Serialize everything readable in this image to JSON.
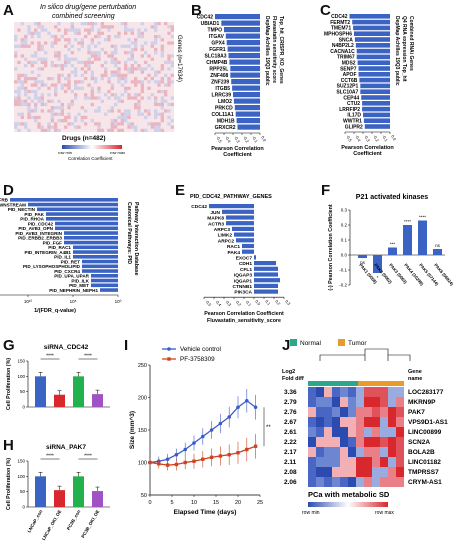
{
  "letters": {
    "A": "A",
    "B": "B",
    "C": "C",
    "D": "D",
    "E": "E",
    "F": "F",
    "G": "G",
    "H": "H",
    "I": "I",
    "J": "J"
  },
  "panelA": {
    "title_l1": "In silico drug/gene perturbation",
    "title_l2": "combined screening",
    "y_label": "Genes (n=17634)",
    "x_label": "Drugs (n=482)",
    "scale_min": "row min",
    "scale_max": "row max",
    "scale_title": "Correlation Coefficient"
  },
  "chart_data": [
    {
      "panel": "B",
      "type": "bar",
      "categories": [
        "CDC42",
        "UBIAD1",
        "TMPO",
        "ITGAV",
        "GPX4",
        "FGFR1",
        "SLC18A3",
        "CHMP4B",
        "RPP25L",
        "ZNF408",
        "ZNF239",
        "ITGB5",
        "LRRC39",
        "LMO2",
        "PRKCD",
        "COL11A1",
        "MDH1B",
        "GRXCR2"
      ],
      "values": [
        -0.5,
        -0.43,
        -0.4,
        -0.38,
        -0.37,
        -0.36,
        -0.35,
        -0.34,
        -0.33,
        -0.33,
        -0.32,
        -0.31,
        -0.3,
        -0.29,
        -0.28,
        -0.27,
        -0.26,
        -0.25
      ],
      "xlabel": "Pearson Correlation Coefficient",
      "ticks": [
        "-0.5",
        "-0.4",
        "-0.3",
        "-0.2",
        "-0.1",
        "0.0"
      ],
      "side_title": [
        "DepMap Achilles 19Q3 public",
        "Fluvastatin sensitivity score",
        "Top_hit_CRISPR_KO_Genes"
      ]
    },
    {
      "panel": "C",
      "type": "bar",
      "categories": [
        "CDC42",
        "FERMT2",
        "TMEM71",
        "MPHOSPH6",
        "SNCA",
        "N4BP2L2",
        "CACNA1C",
        "TRIM67",
        "MDS2",
        "SENP7",
        "APOF",
        "CCT6B",
        "SUZ12P1",
        "SLC10A7",
        "CEP44",
        "CTU2",
        "LRRFIP2",
        "IL17D",
        "WWTR1",
        "GLIPR2"
      ],
      "values": [
        -0.45,
        -0.42,
        -0.41,
        -0.4,
        -0.39,
        -0.38,
        -0.37,
        -0.37,
        -0.36,
        -0.35,
        -0.35,
        -0.34,
        -0.33,
        -0.33,
        -0.32,
        -0.31,
        -0.31,
        -0.3,
        -0.29,
        -0.28
      ],
      "xlabel": "Pearson Correlation Coefficient",
      "ticks": [
        "-0.5",
        "-0.4",
        "-0.3",
        "-0.2",
        "-0.1",
        "0.0"
      ],
      "side_title": [
        "DepMap Achilles 19Q3 public",
        "Q4 RNA expression Top_hit",
        "Combined RNAi Genes"
      ]
    },
    {
      "panel": "D",
      "type": "bar",
      "categories": [
        "PID_PDGFRB",
        "PID_ERBB1_DOWNSTREAM",
        "PID_NECTIN",
        "PID_PAK",
        "PID_RHOA",
        "PID_CDC42",
        "PID_AVB3_OPN",
        "PID_AVB3_INTEGRIN",
        "PID_ERBB2_ERBB3",
        "PID_FGF",
        "PID_RAC1",
        "PID_INTEGRIN_A4B1",
        "PID_IL1",
        "PID_RET",
        "PID_LYSOPHOSPHOLIPID",
        "PID_CXCR4",
        "PID_UPA_UPAR",
        "PID_ILK",
        "PID_MET",
        "PID_NEPHRIN_NEPH1"
      ],
      "values": [
        1e-12,
        1e-10,
        1e-09,
        1e-08,
        1e-08,
        1e-07,
        1e-07,
        1e-06,
        1e-06,
        1e-06,
        1e-05,
        1e-05,
        1e-05,
        0.0001,
        0.0001,
        0.0001,
        0.001,
        0.001,
        0.001,
        0.01
      ],
      "xlabel": "1/(FDR_q-value)",
      "ticks": [
        "10¹⁵",
        "10¹⁰",
        "10⁵",
        "10⁰"
      ],
      "side_title": [
        "Canonical Pathways: PID",
        "Pathway Interaction Database"
      ]
    },
    {
      "panel": "E",
      "type": "bar",
      "title": "PID_CDC42_PATHWAY_GENES",
      "categories": [
        "CDC42",
        "JUN",
        "MAPK8",
        "ACTR3",
        "ARPC3",
        "LIMK2",
        "ARPC2",
        "RAC1",
        "PAK4",
        "EXOC7",
        "CDH1",
        "CFL1",
        "IQGAP3",
        "IQGAP1",
        "CTNNB1",
        "PIK3CA"
      ],
      "values": [
        -0.45,
        -0.32,
        -0.28,
        -0.28,
        -0.22,
        -0.2,
        -0.18,
        -0.12,
        -0.12,
        0.02,
        0.22,
        0.24,
        0.24,
        0.26,
        0.24,
        0.24
      ],
      "xlabel": "Pearson Correlation Coefficient",
      "xlabel2": "Fluvastatin_sensitivity_score",
      "ticks": [
        "-0.5",
        "-0.4",
        "-0.3",
        "-0.2",
        "-0.1",
        "0.0",
        "0.1",
        "0.2",
        "0.3"
      ]
    },
    {
      "panel": "F",
      "type": "bar",
      "title": "P21 activated kinases",
      "categories": [
        "PAK1 (5058)",
        "PAK2 (5062)",
        "PAK3 (5063)",
        "PAK4 (10298)",
        "PAK5 (57144)",
        "PAK6 (56924)"
      ],
      "values": [
        -0.02,
        -0.12,
        0.05,
        0.2,
        0.23,
        0.04
      ],
      "annotations": [
        "ns",
        "*",
        "***",
        "****",
        "****",
        "ns"
      ],
      "ylabel": "(-) Pearson Correlation Coefficient",
      "ticks": [
        "0.3",
        "0.2",
        "0.1",
        "0.0",
        "-0.1",
        "-0.2"
      ],
      "ylim": [
        -0.2,
        0.3
      ]
    },
    {
      "panel": "G",
      "type": "bar",
      "title": "siRNA_CDC42",
      "categories": [
        "LNCaP_con",
        "LNCaP_CDC42_KD",
        "PC3B_con",
        "PC3B_CDC42_KD"
      ],
      "values": [
        100,
        40,
        100,
        42
      ],
      "annotations": [
        "****",
        "****"
      ],
      "ylabel": "Cell Proliferation (%)",
      "ticks": [
        "150",
        "100",
        "50",
        "0"
      ],
      "ylim": [
        0,
        150
      ]
    },
    {
      "panel": "H",
      "type": "bar",
      "title": "siRNA_PAK7",
      "categories": [
        "LNCaP_con",
        "LNCaP_OKI_OE",
        "PC3B_con",
        "PC3B_OKI_OE"
      ],
      "values": [
        100,
        55,
        100,
        52
      ],
      "annotations": [
        "****",
        "****"
      ],
      "ylabel": "Cell Proliferation (%)",
      "ticks": [
        "150",
        "100",
        "50",
        "0"
      ],
      "ylim": [
        0,
        150
      ],
      "tick_labels_x": [
        "LNCaP_con",
        "LNCaP_OKI_OE",
        "PC3B_con",
        "PC3B_OKI_OE"
      ]
    },
    {
      "panel": "I",
      "type": "line",
      "series": [
        {
          "name": "Vehicle control",
          "x": [
            0,
            2,
            4,
            6,
            8,
            10,
            12,
            14,
            16,
            18,
            20,
            22,
            24
          ],
          "y": [
            100,
            102,
            105,
            112,
            120,
            130,
            140,
            150,
            160,
            170,
            185,
            195,
            185
          ]
        },
        {
          "name": "PF-3758309",
          "x": [
            0,
            2,
            4,
            6,
            8,
            10,
            12,
            14,
            16,
            18,
            20,
            22,
            24
          ],
          "y": [
            100,
            98,
            96,
            97,
            100,
            102,
            105,
            108,
            110,
            112,
            115,
            120,
            125
          ]
        }
      ],
      "xlabel": "Elapsed Time (days)",
      "ylabel": "Size (mm^3)",
      "xticks": [
        "0",
        "5",
        "10",
        "15",
        "20",
        "25"
      ],
      "yticks": [
        "50",
        "100",
        "150",
        "200",
        "250"
      ],
      "xlim": [
        0,
        25
      ],
      "ylim": [
        50,
        250
      ],
      "annotation": "**"
    },
    {
      "panel": "J",
      "type": "heatmap",
      "legend": [
        "Normal",
        "Tumor"
      ],
      "log2_header": [
        "Log2",
        "Fold diff"
      ],
      "gene_header": [
        "Gene",
        "name"
      ],
      "fold": [
        "3.36",
        "2.79",
        "2.76",
        "2.67",
        "2.61",
        "2.22",
        "2.17",
        "2.11",
        "2.08",
        "2.06"
      ],
      "genes": [
        "LOC283177",
        "MKRN9P",
        "PAK7",
        "VPS9D1-AS1",
        "LINC00899",
        "SCN2A",
        "BOLA2B",
        "LINC01182",
        "TMPRSS7",
        "CRYM-AS1"
      ],
      "caption": "PCa with metabolic SD",
      "scale_min": "row min",
      "scale_max": "row max"
    }
  ],
  "colors": {
    "bar": "#3b63c4",
    "red": "#d8272d",
    "green": "#22b14c",
    "purple": "#a052c4",
    "vehicle": "#3b5bcc",
    "pf": "#cc4422",
    "normal": "#2aa889",
    "tumor": "#e89a2e"
  }
}
